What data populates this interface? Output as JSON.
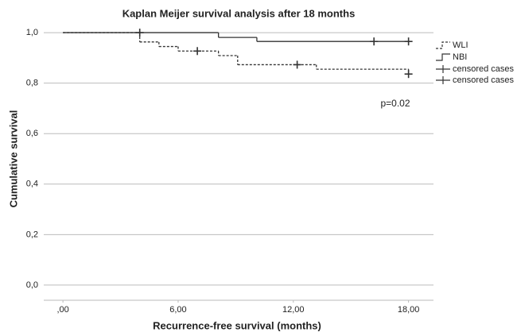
{
  "chart_data": {
    "type": "survival",
    "title": "Kaplan Meijer survival analysis after 18 months",
    "x_label": "Recurrence-free survival (months)",
    "y_label": "Cumulative survival",
    "annotation": "p=0.02",
    "xlim": [
      -1,
      19.3
    ],
    "ylim": [
      -0.06,
      1.06
    ],
    "xticks": [
      {
        "value": 0,
        "label": ",00"
      },
      {
        "value": 6,
        "label": "6,00"
      },
      {
        "value": 12,
        "label": "12,00"
      },
      {
        "value": 18,
        "label": "18,00"
      }
    ],
    "yticks": [
      {
        "value": 0,
        "label": "0,0"
      },
      {
        "value": 0.2,
        "label": "0,2"
      },
      {
        "value": 0.4,
        "label": "0,4"
      },
      {
        "value": 0.6,
        "label": "0,6"
      },
      {
        "value": 0.8,
        "label": "0,8"
      },
      {
        "value": 1.0,
        "label": "1,0"
      }
    ],
    "grid": true,
    "series": [
      {
        "name": "WLI",
        "color": "#333333",
        "dashed": true,
        "x": [
          0,
          4,
          5,
          6,
          8.1,
          9.1,
          13.2,
          18,
          18
        ],
        "values": [
          1,
          0.963,
          0.945,
          0.927,
          0.909,
          0.873,
          0.855,
          0.855,
          0.836
        ],
        "censored": {
          "name": "censored cases",
          "x": [
            4,
            7,
            12.2,
            18
          ],
          "values": [
            1,
            0.927,
            0.873,
            0.836
          ]
        }
      },
      {
        "name": "NBI",
        "color": "#333333",
        "dashed": false,
        "x": [
          0,
          8.1,
          10.1,
          18
        ],
        "values": [
          1,
          0.981,
          0.965,
          0.965
        ],
        "censored": {
          "name": "censored cases",
          "x": [
            16.2,
            18
          ],
          "values": [
            0.965,
            0.965
          ]
        }
      }
    ]
  }
}
